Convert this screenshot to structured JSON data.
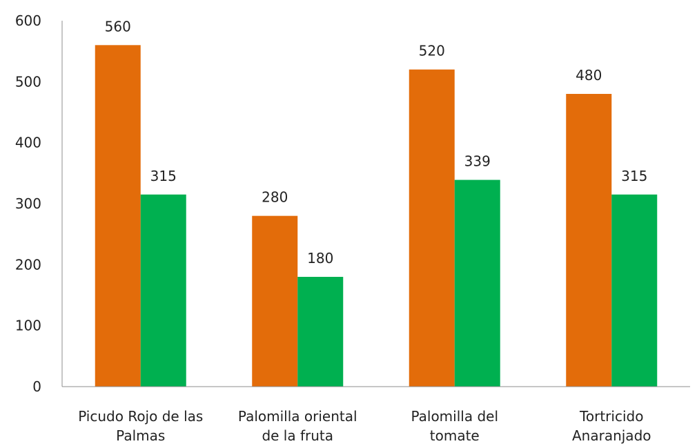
{
  "chart_data": {
    "type": "bar",
    "categories": [
      [
        "Picudo Rojo de las",
        "Palmas"
      ],
      [
        "Palomilla oriental",
        "de la fruta"
      ],
      [
        "Palomilla del",
        "tomate"
      ],
      [
        "Tortricido",
        "Anaranjado"
      ]
    ],
    "series": [
      {
        "values": [
          560,
          280,
          520,
          480
        ],
        "color": "#e36c0a"
      },
      {
        "values": [
          315,
          180,
          339,
          315
        ],
        "color": "#00b050"
      }
    ],
    "ylim": [
      0,
      600
    ],
    "yticks": [
      0,
      100,
      200,
      300,
      400,
      500,
      600
    ],
    "xlabel": "",
    "ylabel": "",
    "title": "",
    "grid": false,
    "legend": "none",
    "data_labels": true,
    "axis_color": "#8c8c8c"
  }
}
